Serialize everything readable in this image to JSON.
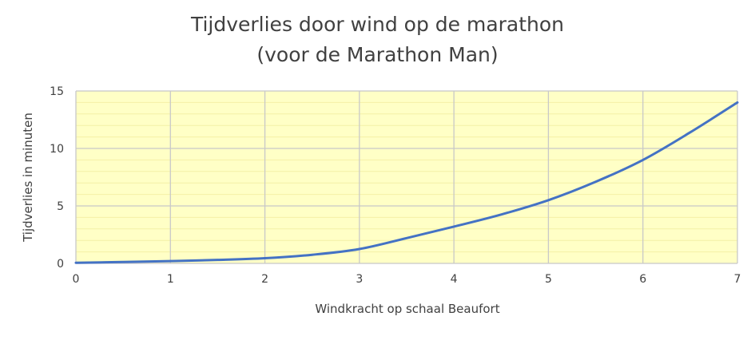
{
  "chart_data": {
    "type": "line",
    "title_line1": "Tijdverlies door wind op de marathon",
    "title_line2": "(voor de Marathon Man)",
    "xlabel": "Windkracht op schaal Beaufort",
    "ylabel": "Tijdverlies in minuten",
    "xlim": [
      0,
      7
    ],
    "ylim": [
      0,
      15
    ],
    "x_ticks": [
      "0",
      "1",
      "2",
      "3",
      "4",
      "5",
      "6",
      "7"
    ],
    "y_ticks": [
      "0",
      "5",
      "10",
      "15"
    ],
    "grid": true,
    "plot_background": "#FFFFC6",
    "minor_grid_color": "#F4F0A6",
    "major_grid_color": "#C8C8C8",
    "line_color": "#4472C4",
    "series": [
      {
        "x": [
          0,
          0.5,
          1,
          1.5,
          2,
          2.5,
          3,
          3.5,
          4,
          4.5,
          5,
          5.5,
          6,
          6.5,
          7
        ],
        "values": [
          0.05,
          0.12,
          0.2,
          0.3,
          0.45,
          0.75,
          1.25,
          2.2,
          3.2,
          4.25,
          5.5,
          7.1,
          9.0,
          11.4,
          14.0
        ]
      }
    ]
  }
}
